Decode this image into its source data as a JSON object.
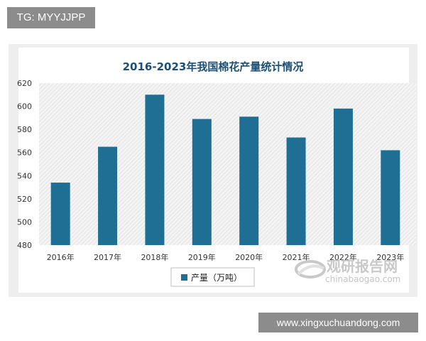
{
  "watermark_top": "TG: MYYJJPP",
  "watermark_bottom": "www.xingxuchuandong.com",
  "logo": {
    "name_cn": "观研报告网",
    "url_text": "chinabaogao.com"
  },
  "colors": {
    "bar": "#1f6f94",
    "title": "#1c4f73",
    "plot_bg_hatch": "#d9d9d9"
  },
  "chart_data": {
    "type": "bar",
    "title": "2016-2023年我国棉花产量统计情况",
    "categories": [
      "2016年",
      "2017年",
      "2018年",
      "2019年",
      "2020年",
      "2021年",
      "2022年",
      "2023年"
    ],
    "series": [
      {
        "name": "产量（万吨）",
        "values": [
          534,
          565,
          610,
          589,
          591,
          573,
          598,
          562
        ]
      }
    ],
    "ylim": [
      480,
      620
    ],
    "yticks": [
      480,
      500,
      520,
      540,
      560,
      580,
      600,
      620
    ],
    "legend_position": "bottom",
    "grid": false
  }
}
